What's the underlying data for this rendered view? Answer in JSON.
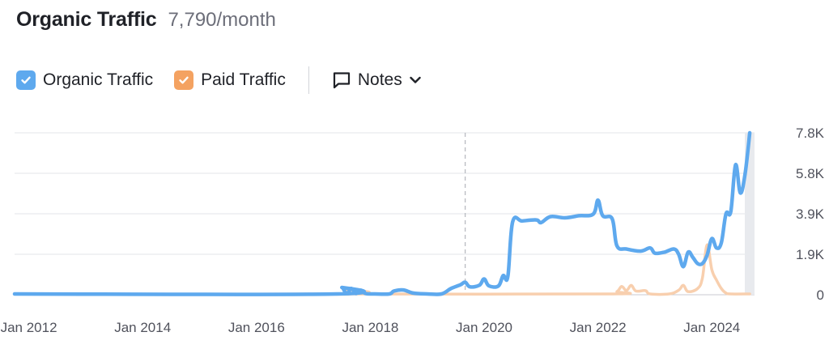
{
  "header": {
    "title": "Organic Traffic",
    "subtitle": "7,790/month"
  },
  "legend": {
    "items": [
      {
        "label": "Organic Traffic",
        "color": "#5ea9ee",
        "checked": true
      },
      {
        "label": "Paid Traffic",
        "color": "#f4a261",
        "checked": true
      }
    ],
    "notes_label": "Notes"
  },
  "icons": {
    "check": "check-icon",
    "notes": "comment-icon",
    "dropdown": "chevron-down-icon"
  },
  "chart_data": {
    "type": "line",
    "x_ticks": [
      "Jan 2012",
      "Jan 2014",
      "Jan 2016",
      "Jan 2018",
      "Jan 2020",
      "Jan 2022",
      "Jan 2024"
    ],
    "y_ticks": [
      "0",
      "1.9K",
      "3.9K",
      "5.8K",
      "7.8K"
    ],
    "ylim": [
      0,
      7790
    ],
    "xlim": [
      "2011-10",
      "2024-10"
    ],
    "grid": true,
    "marker_date": "2019-09",
    "series": [
      {
        "name": "Organic Traffic",
        "color": "#5ea9ee",
        "points": [
          [
            "2011-10",
            0
          ],
          [
            "2017-06",
            0
          ],
          [
            "2017-07",
            350
          ],
          [
            "2017-08",
            50
          ],
          [
            "2017-09",
            300
          ],
          [
            "2017-10",
            60
          ],
          [
            "2017-11",
            220
          ],
          [
            "2017-12",
            60
          ],
          [
            "2018-02",
            40
          ],
          [
            "2018-05",
            0
          ],
          [
            "2018-06",
            180
          ],
          [
            "2018-08",
            230
          ],
          [
            "2018-10",
            80
          ],
          [
            "2019-01",
            20
          ],
          [
            "2019-04",
            40
          ],
          [
            "2019-06",
            300
          ],
          [
            "2019-08",
            480
          ],
          [
            "2019-09",
            600
          ],
          [
            "2019-10",
            380
          ],
          [
            "2019-12",
            460
          ],
          [
            "2020-01",
            760
          ],
          [
            "2020-02",
            430
          ],
          [
            "2020-04",
            420
          ],
          [
            "2020-05",
            920
          ],
          [
            "2020-06",
            880
          ],
          [
            "2020-07",
            3500
          ],
          [
            "2020-09",
            3550
          ],
          [
            "2020-12",
            3600
          ],
          [
            "2021-01",
            3470
          ],
          [
            "2021-03",
            3760
          ],
          [
            "2021-06",
            3700
          ],
          [
            "2021-09",
            3800
          ],
          [
            "2021-12",
            3880
          ],
          [
            "2022-01",
            4550
          ],
          [
            "2022-02",
            3800
          ],
          [
            "2022-04",
            3650
          ],
          [
            "2022-05",
            2350
          ],
          [
            "2022-07",
            2200
          ],
          [
            "2022-10",
            2100
          ],
          [
            "2022-12",
            2250
          ],
          [
            "2023-01",
            2000
          ],
          [
            "2023-03",
            2050
          ],
          [
            "2023-05",
            2200
          ],
          [
            "2023-06",
            1950
          ],
          [
            "2023-07",
            1350
          ],
          [
            "2023-08",
            2050
          ],
          [
            "2023-09",
            1800
          ],
          [
            "2023-10",
            1500
          ],
          [
            "2023-11",
            1500
          ],
          [
            "2023-12",
            1900
          ],
          [
            "2024-01",
            2700
          ],
          [
            "2024-02",
            2250
          ],
          [
            "2024-03",
            2500
          ],
          [
            "2024-04",
            3900
          ],
          [
            "2024-05",
            4000
          ],
          [
            "2024-06",
            6250
          ],
          [
            "2024-07",
            4900
          ],
          [
            "2024-08",
            5800
          ],
          [
            "2024-09",
            7790
          ]
        ]
      },
      {
        "name": "Paid Traffic",
        "color": "#f8cfae",
        "points": [
          [
            "2011-10",
            0
          ],
          [
            "2017-07",
            0
          ],
          [
            "2017-08",
            250
          ],
          [
            "2017-09",
            40
          ],
          [
            "2017-10",
            0
          ],
          [
            "2022-03",
            0
          ],
          [
            "2022-05",
            150
          ],
          [
            "2022-06",
            400
          ],
          [
            "2022-07",
            200
          ],
          [
            "2022-08",
            450
          ],
          [
            "2022-09",
            180
          ],
          [
            "2022-11",
            200
          ],
          [
            "2022-12",
            0
          ],
          [
            "2023-04",
            0
          ],
          [
            "2023-06",
            220
          ],
          [
            "2023-07",
            450
          ],
          [
            "2023-08",
            150
          ],
          [
            "2023-10",
            300
          ],
          [
            "2023-11",
            800
          ],
          [
            "2023-12",
            2400
          ],
          [
            "2024-01",
            1200
          ],
          [
            "2024-02",
            700
          ],
          [
            "2024-03",
            300
          ],
          [
            "2024-04",
            80
          ],
          [
            "2024-05",
            0
          ],
          [
            "2024-09",
            0
          ]
        ]
      }
    ]
  }
}
